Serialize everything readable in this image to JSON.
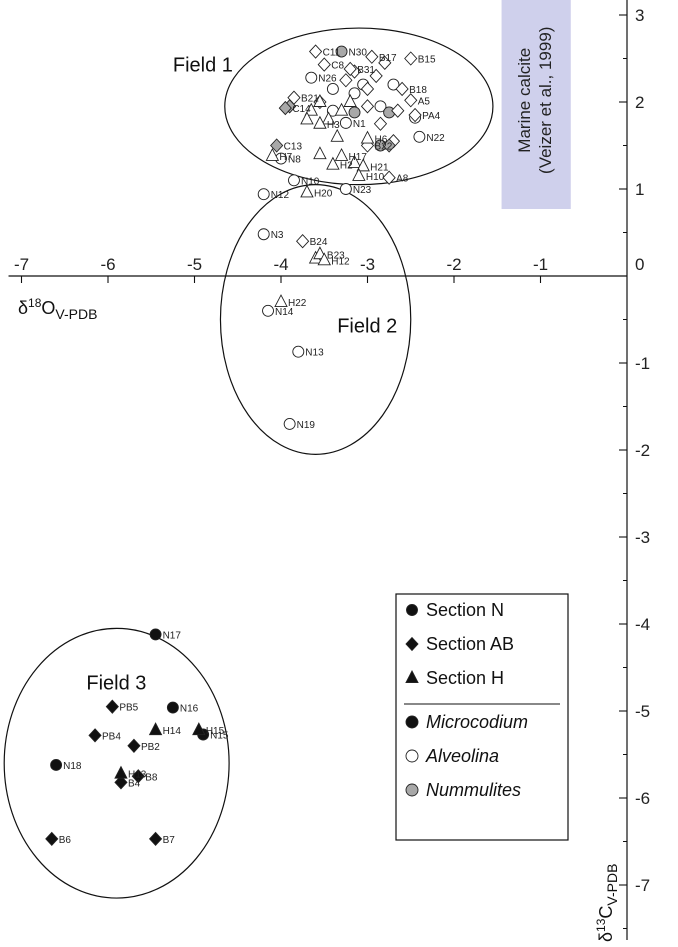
{
  "chart_data": {
    "type": "scatter",
    "title": "",
    "xlabel": {
      "main": "δ",
      "sup": "18",
      "rest": "O",
      "sub": "V-PDB"
    },
    "ylabel": {
      "main": "δ",
      "sup": "13",
      "rest": "C",
      "sub": "V-PDB"
    },
    "xlim": [
      -7.15,
      0
    ],
    "ylim": [
      -7.7,
      3.1
    ],
    "x_ticks": [
      -7,
      -6,
      -5,
      -4,
      -3,
      -2,
      -1,
      0
    ],
    "y_ticks": [
      3,
      2,
      1,
      -1,
      -2,
      -3,
      -4,
      -5,
      -6,
      -7
    ],
    "grid": false,
    "legend_position": "bottom-right",
    "legend": {
      "sections": [
        {
          "name": "Section N",
          "shape": "circle"
        },
        {
          "name": "Section AB",
          "shape": "diamond"
        },
        {
          "name": "Section H",
          "shape": "triangle"
        }
      ],
      "fossils": [
        {
          "name": "Microcodium",
          "fill": "#111111"
        },
        {
          "name": "Alveolina",
          "fill": "#ffffff"
        },
        {
          "name": "Nummulites",
          "fill": "#a8a8a8"
        }
      ]
    },
    "fields": [
      {
        "label": "Field 1",
        "cx": -3.1,
        "cy": 1.95,
        "rx": 1.55,
        "ry": 0.9
      },
      {
        "label": "Field 2",
        "cx": -3.6,
        "cy": -0.5,
        "rx": 1.1,
        "ry": 1.55
      },
      {
        "label": "Field 3",
        "cx": -5.9,
        "cy": -5.6,
        "rx": 1.3,
        "ry": 1.55
      }
    ],
    "field_label_positions": [
      {
        "label": "Field 1",
        "x": -5.25,
        "y": 2.35
      },
      {
        "label": "Field 2",
        "x": -3.35,
        "y": -0.65
      },
      {
        "label": "Field 3",
        "x": -6.25,
        "y": -4.75
      }
    ],
    "marine_calcite": {
      "line1": "Marine calcite",
      "line2": "(Veizer et al., 1999)",
      "x_range": [
        -1.45,
        -0.65
      ],
      "y_range": [
        0.77,
        3.27
      ],
      "color": "#cfd0ec"
    },
    "series": [
      {
        "name": "Section N",
        "points": [
          {
            "label": "N17",
            "x": -5.45,
            "y": -4.12,
            "fossil": "Microcodium"
          },
          {
            "label": "N16",
            "x": -5.25,
            "y": -4.96,
            "fossil": "Microcodium"
          },
          {
            "label": "N15",
            "x": -4.9,
            "y": -5.27,
            "fossil": "Microcodium"
          },
          {
            "label": "N18",
            "x": -6.6,
            "y": -5.62,
            "fossil": "Microcodium"
          },
          {
            "label": "N30",
            "x": -3.3,
            "y": 2.58,
            "fossil": "Nummulites"
          },
          {
            "label": "N26",
            "x": -3.65,
            "y": 2.28,
            "fossil": "Alveolina"
          },
          {
            "label": "N1",
            "x": -3.25,
            "y": 1.76,
            "fossil": "Alveolina"
          },
          {
            "label": "N22",
            "x": -2.4,
            "y": 1.6,
            "fossil": "Alveolina"
          },
          {
            "label": "N8",
            "x": -4.0,
            "y": 1.35,
            "fossil": "Alveolina"
          },
          {
            "label": "N10",
            "x": -3.85,
            "y": 1.1,
            "fossil": "Alveolina"
          },
          {
            "label": "N23",
            "x": -3.25,
            "y": 1.0,
            "fossil": "Alveolina"
          },
          {
            "label": "N12",
            "x": -4.2,
            "y": 0.94,
            "fossil": "Alveolina"
          },
          {
            "label": "N3",
            "x": -4.2,
            "y": 0.48,
            "fossil": "Alveolina"
          },
          {
            "label": "N14",
            "x": -4.15,
            "y": -0.4,
            "fossil": "Alveolina"
          },
          {
            "label": "N13",
            "x": -3.8,
            "y": -0.87,
            "fossil": "Alveolina"
          },
          {
            "label": "N19",
            "x": -3.9,
            "y": -1.7,
            "fossil": "Alveolina"
          }
        ]
      },
      {
        "name": "Section AB",
        "points": [
          {
            "label": "PB5",
            "x": -5.95,
            "y": -4.95,
            "fossil": "Microcodium"
          },
          {
            "label": "PB4",
            "x": -6.15,
            "y": -5.28,
            "fossil": "Microcodium"
          },
          {
            "label": "PB2",
            "x": -5.7,
            "y": -5.4,
            "fossil": "Microcodium"
          },
          {
            "label": "B8",
            "x": -5.65,
            "y": -5.75,
            "fossil": "Microcodium"
          },
          {
            "label": "B4",
            "x": -5.85,
            "y": -5.82,
            "fossil": "Microcodium"
          },
          {
            "label": "B6",
            "x": -6.65,
            "y": -6.47,
            "fossil": "Microcodium"
          },
          {
            "label": "B7",
            "x": -5.45,
            "y": -6.47,
            "fossil": "Microcodium"
          },
          {
            "label": "C11",
            "x": -3.6,
            "y": 2.58,
            "fossil": "Alveolina"
          },
          {
            "label": "C8",
            "x": -3.5,
            "y": 2.43,
            "fossil": "Alveolina"
          },
          {
            "label": "B17",
            "x": -2.95,
            "y": 2.52,
            "fossil": "Alveolina"
          },
          {
            "label": "B15",
            "x": -2.5,
            "y": 2.5,
            "fossil": "Alveolina"
          },
          {
            "label": "B31",
            "x": -3.2,
            "y": 2.38,
            "fossil": "Alveolina"
          },
          {
            "label": "B18",
            "x": -2.6,
            "y": 2.15,
            "fossil": "Alveolina"
          },
          {
            "label": "A5",
            "x": -2.5,
            "y": 2.02,
            "fossil": "Alveolina"
          },
          {
            "label": "B21",
            "x": -3.85,
            "y": 2.05,
            "fossil": "Alveolina"
          },
          {
            "label": "C14",
            "x": -3.95,
            "y": 1.93,
            "fossil": "Nummulites"
          },
          {
            "label": "PA4",
            "x": -2.45,
            "y": 1.85,
            "fossil": "Alveolina"
          },
          {
            "label": "C13",
            "x": -4.05,
            "y": 1.5,
            "fossil": "Nummulites"
          },
          {
            "label": "B22",
            "x": -3.0,
            "y": 1.5,
            "fossil": "Alveolina"
          },
          {
            "label": "A8",
            "x": -2.75,
            "y": 1.13,
            "fossil": "Alveolina"
          },
          {
            "label": "B24",
            "x": -3.75,
            "y": 0.4,
            "fossil": "Alveolina"
          }
        ]
      },
      {
        "name": "Section H",
        "points": [
          {
            "label": "H14",
            "x": -5.45,
            "y": -5.22,
            "fossil": "Microcodium"
          },
          {
            "label": "H15",
            "x": -4.95,
            "y": -5.22,
            "fossil": "Microcodium"
          },
          {
            "label": "H13",
            "x": -5.85,
            "y": -5.72,
            "fossil": "Microcodium"
          },
          {
            "label": "H3",
            "x": -3.55,
            "y": 1.75,
            "fossil": "Alveolina"
          },
          {
            "label": "H6",
            "x": -3.0,
            "y": 1.58,
            "fossil": "Alveolina"
          },
          {
            "label": "H7",
            "x": -4.1,
            "y": 1.38,
            "fossil": "Alveolina"
          },
          {
            "label": "H17",
            "x": -3.3,
            "y": 1.38,
            "fossil": "Alveolina"
          },
          {
            "label": "H2",
            "x": -3.4,
            "y": 1.28,
            "fossil": "Alveolina"
          },
          {
            "label": "H21",
            "x": -3.05,
            "y": 1.26,
            "fossil": "Alveolina"
          },
          {
            "label": "H10",
            "x": -3.1,
            "y": 1.15,
            "fossil": "Alveolina"
          },
          {
            "label": "H20",
            "x": -3.7,
            "y": 0.96,
            "fossil": "Alveolina"
          },
          {
            "label": "B23",
            "x": -3.55,
            "y": 0.25,
            "fossil": "Alveolina"
          },
          {
            "label": "H12",
            "x": -3.5,
            "y": 0.18,
            "fossil": "Alveolina"
          },
          {
            "label": "H22",
            "x": -4.0,
            "y": -0.3,
            "fossil": "Alveolina"
          }
        ]
      }
    ],
    "unlabeled_points": [
      {
        "section": "Section N",
        "x": -3.4,
        "y": 2.15,
        "fossil": "Alveolina"
      },
      {
        "section": "Section N",
        "x": -3.05,
        "y": 2.2,
        "fossil": "Alveolina"
      },
      {
        "section": "Section N",
        "x": -2.7,
        "y": 2.2,
        "fossil": "Alveolina"
      },
      {
        "section": "Section N",
        "x": -2.85,
        "y": 1.95,
        "fossil": "Alveolina"
      },
      {
        "section": "Section N",
        "x": -2.45,
        "y": 1.82,
        "fossil": "Alveolina"
      },
      {
        "section": "Section N",
        "x": -3.15,
        "y": 1.88,
        "fossil": "Nummulites"
      },
      {
        "section": "Section N",
        "x": -2.75,
        "y": 1.88,
        "fossil": "Nummulites"
      },
      {
        "section": "Section N",
        "x": -3.4,
        "y": 1.9,
        "fossil": "Alveolina"
      },
      {
        "section": "Section N",
        "x": -2.85,
        "y": 1.5,
        "fossil": "Nummulites"
      },
      {
        "section": "Section N",
        "x": -3.15,
        "y": 2.1,
        "fossil": "Alveolina"
      },
      {
        "section": "Section AB",
        "x": -3.55,
        "y": 2.0,
        "fossil": "Alveolina"
      },
      {
        "section": "Section AB",
        "x": -3.25,
        "y": 2.25,
        "fossil": "Alveolina"
      },
      {
        "section": "Section AB",
        "x": -2.9,
        "y": 2.3,
        "fossil": "Alveolina"
      },
      {
        "section": "Section AB",
        "x": -2.65,
        "y": 1.9,
        "fossil": "Alveolina"
      },
      {
        "section": "Section AB",
        "x": -3.0,
        "y": 1.95,
        "fossil": "Alveolina"
      },
      {
        "section": "Section AB",
        "x": -3.15,
        "y": 2.35,
        "fossil": "Alveolina"
      },
      {
        "section": "Section AB",
        "x": -2.8,
        "y": 2.45,
        "fossil": "Alveolina"
      },
      {
        "section": "Section AB",
        "x": -2.85,
        "y": 1.75,
        "fossil": "Alveolina"
      },
      {
        "section": "Section AB",
        "x": -2.7,
        "y": 1.55,
        "fossil": "Alveolina"
      },
      {
        "section": "Section AB",
        "x": -3.0,
        "y": 2.15,
        "fossil": "Alveolina"
      },
      {
        "section": "Section AB",
        "x": -3.9,
        "y": 1.95,
        "fossil": "Nummulites"
      },
      {
        "section": "Section AB",
        "x": -2.75,
        "y": 1.5,
        "fossil": "Nummulites"
      },
      {
        "section": "Section H",
        "x": -3.65,
        "y": 1.9,
        "fossil": "Alveolina"
      },
      {
        "section": "Section H",
        "x": -3.55,
        "y": 2.0,
        "fossil": "Alveolina"
      },
      {
        "section": "Section H",
        "x": -3.3,
        "y": 1.9,
        "fossil": "Alveolina"
      },
      {
        "section": "Section H",
        "x": -3.2,
        "y": 2.0,
        "fossil": "Alveolina"
      },
      {
        "section": "Section H",
        "x": -3.45,
        "y": 1.8,
        "fossil": "Alveolina"
      },
      {
        "section": "Section H",
        "x": -3.7,
        "y": 1.8,
        "fossil": "Alveolina"
      },
      {
        "section": "Section H",
        "x": -3.35,
        "y": 1.6,
        "fossil": "Alveolina"
      },
      {
        "section": "Section H",
        "x": -3.15,
        "y": 1.3,
        "fossil": "Alveolina"
      },
      {
        "section": "Section H",
        "x": -3.55,
        "y": 1.4,
        "fossil": "Alveolina"
      },
      {
        "section": "Section H",
        "x": -3.6,
        "y": 0.2,
        "fossil": "Alveolina"
      }
    ]
  }
}
